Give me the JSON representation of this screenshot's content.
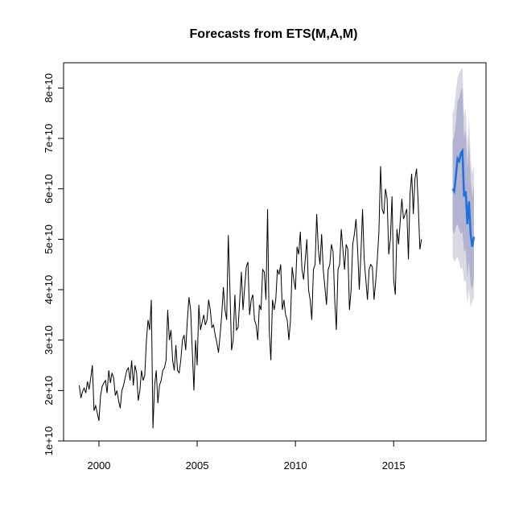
{
  "chart_data": {
    "type": "line",
    "title": "Forecasts from ETS(M,A,M)",
    "xlabel": "",
    "ylabel": "",
    "xlim": [
      1998.2,
      2019.7
    ],
    "ylim": [
      10000000000,
      85000000000
    ],
    "x_ticks": [
      2000,
      2005,
      2010,
      2015
    ],
    "x_tick_labels": [
      "2000",
      "2005",
      "2010",
      "2015"
    ],
    "y_ticks": [
      10000000000,
      20000000000,
      30000000000,
      40000000000,
      50000000000,
      60000000000,
      70000000000,
      80000000000
    ],
    "y_tick_labels": [
      "1e+10",
      "2e+10",
      "3e+10",
      "4e+10",
      "5e+10",
      "6e+10",
      "7e+10",
      "8e+10"
    ],
    "grid": false,
    "colors": {
      "history": "#000000",
      "forecast": "#1f6fdc",
      "band_80": "#b1b3d0",
      "band_95": "#d9d9e1"
    },
    "series": [
      {
        "role": "history",
        "frequency": 12,
        "start": 1999.0,
        "values": [
          21.0,
          18.5,
          19.8,
          20.5,
          19.5,
          21.8,
          20.2,
          22.5,
          25.0,
          16.0,
          17.0,
          15.5,
          14.0,
          19.0,
          20.8,
          21.5,
          22.0,
          19.5,
          24.0,
          21.5,
          23.5,
          22.5,
          19.0,
          20.0,
          18.0,
          16.5,
          20.0,
          21.0,
          22.5,
          24.0,
          24.5,
          22.0,
          26.0,
          21.0,
          25.0,
          23.5,
          18.0,
          20.0,
          24.0,
          22.0,
          23.0,
          30.0,
          34.0,
          32.0,
          38.0,
          12.5,
          21.0,
          24.0,
          17.5,
          21.0,
          22.0,
          24.0,
          24.5,
          26.0,
          36.0,
          30.0,
          32.0,
          26.0,
          24.0,
          29.0,
          24.0,
          23.5,
          26.0,
          30.0,
          31.0,
          28.0,
          34.0,
          38.5,
          36.0,
          28.0,
          20.0,
          30.0,
          25.0,
          37.0,
          32.0,
          33.5,
          35.0,
          33.0,
          34.0,
          38.0,
          36.0,
          32.5,
          33.0,
          31.0,
          29.5,
          27.5,
          31.0,
          35.0,
          40.5,
          36.0,
          34.0,
          50.8,
          40.0,
          28.0,
          30.0,
          39.0,
          32.0,
          32.5,
          38.0,
          43.5,
          36.0,
          40.5,
          44.5,
          45.5,
          35.0,
          38.0,
          39.0,
          34.0,
          33.0,
          30.0,
          37.0,
          36.0,
          44.0,
          43.5,
          38.0,
          56.0,
          32.0,
          26.0,
          38.0,
          36.0,
          38.0,
          44.0,
          43.0,
          45.0,
          36.0,
          38.0,
          35.0,
          34.0,
          30.0,
          34.0,
          44.5,
          42.0,
          40.0,
          48.5,
          47.0,
          51.5,
          44.0,
          42.0,
          46.0,
          50.0,
          40.0,
          38.0,
          34.0,
          44.0,
          45.0,
          55.0,
          48.0,
          45.0,
          51.0,
          44.0,
          40.5,
          37.0,
          44.0,
          45.0,
          49.0,
          47.5,
          38.0,
          32.0,
          44.0,
          45.0,
          52.0,
          48.0,
          44.0,
          49.0,
          48.0,
          36.0,
          40.0,
          49.0,
          51.0,
          54.0,
          48.0,
          40.0,
          47.0,
          56.0,
          46.0,
          42.0,
          38.0,
          44.0,
          45.0,
          44.5,
          38.0,
          41.5,
          46.0,
          51.5,
          64.5,
          56.0,
          55.0,
          60.0,
          58.0,
          47.0,
          50.0,
          58.5,
          42.0,
          39.0,
          52.0,
          49.0,
          53.5,
          58.0,
          54.0,
          55.0,
          56.0,
          46.0,
          59.0,
          63.0,
          55.0,
          62.0,
          64.0,
          57.0,
          48.0,
          50.0
        ]
      },
      {
        "role": "forecast",
        "frequency": 12,
        "start": 2018.0,
        "values": [
          60.0,
          59.5,
          62.5,
          66.0,
          65.5,
          67.0,
          67.5,
          58.5,
          59.5,
          53.0,
          57.5,
          51.0,
          48.5,
          50.5
        ],
        "lo80": [
          52.0,
          51.0,
          52.5,
          53.0,
          52.0,
          51.0,
          51.5,
          47.5,
          48.0,
          42.5,
          45.5,
          41.0,
          40.0,
          42.0
        ],
        "hi80": [
          69.5,
          70.5,
          73.0,
          77.5,
          78.0,
          79.5,
          80.0,
          70.0,
          71.5,
          64.0,
          69.5,
          62.0,
          58.5,
          60.5
        ],
        "lo95": [
          46.5,
          45.5,
          46.0,
          46.5,
          45.5,
          44.0,
          44.5,
          41.5,
          42.0,
          37.0,
          40.0,
          36.5,
          37.5,
          38.5
        ],
        "hi95": [
          75.0,
          76.0,
          79.5,
          82.0,
          83.0,
          83.5,
          84.0,
          74.5,
          76.0,
          68.5,
          74.5,
          66.0,
          63.0,
          64.5
        ]
      }
    ],
    "value_unit_multiplier": 1000000000
  }
}
